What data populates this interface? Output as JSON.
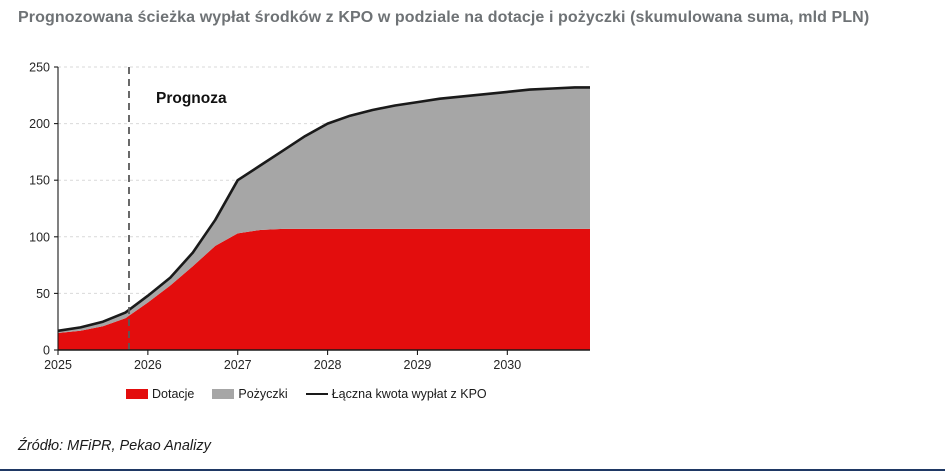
{
  "title": "Prognozowana ścieżka wypłat środków z KPO w podziale na dotacje i pożyczki (skumulowana suma, mld PLN)",
  "source": "Źródło: MFiPR, Pekao Analizy",
  "colors": {
    "dotacje": "#e30d0d",
    "pozyczki": "#a6a6a6",
    "total_line": "#1a1a1a",
    "title_text": "#6e7275",
    "axis": "#1a1a1a",
    "gridline": "#d9d9d9",
    "forecast_line": "#595959",
    "bottom_rule": "#1f3864"
  },
  "chart_data": {
    "type": "area",
    "stacked": true,
    "title": "Prognozowana ścieżka wypłat środków z KPO w podziale na dotacje i pożyczki (skumulowana suma, mld PLN)",
    "xlabel": "",
    "ylabel": "",
    "xlim": [
      2025,
      2030.92
    ],
    "ylim": [
      0,
      250
    ],
    "y_ticks": [
      0,
      50,
      100,
      150,
      200,
      250
    ],
    "x_ticks": [
      2025,
      2026,
      2027,
      2028,
      2029,
      2030
    ],
    "grid": "dashed-horizontal",
    "legend_position": "bottom",
    "annotation": {
      "label": "Prognoza",
      "x": 2025.79
    },
    "x": [
      2025,
      2025.25,
      2025.5,
      2025.75,
      2026,
      2026.25,
      2026.5,
      2026.75,
      2027,
      2027.25,
      2027.5,
      2027.75,
      2028,
      2028.25,
      2028.5,
      2028.75,
      2029,
      2029.25,
      2029.5,
      2029.75,
      2030,
      2030.25,
      2030.5,
      2030.75,
      2030.92
    ],
    "series": [
      {
        "name": "Dotacje",
        "role": "stacked-area",
        "color": "#e30d0d",
        "values": [
          15,
          17,
          21,
          28,
          42,
          57,
          74,
          92,
          103,
          106,
          107,
          107,
          107,
          107,
          107,
          107,
          107,
          107,
          107,
          107,
          107,
          107,
          107,
          107,
          107
        ]
      },
      {
        "name": "Pożyczki",
        "role": "stacked-area",
        "color": "#a6a6a6",
        "values": [
          2,
          3,
          4,
          5,
          6,
          7,
          12,
          23,
          47,
          57,
          69,
          82,
          93,
          100,
          105,
          109,
          112,
          115,
          117,
          119,
          121,
          123,
          124,
          125,
          125
        ]
      },
      {
        "name": "Łączna kwota wypłat z KPO",
        "role": "line-total",
        "color": "#1a1a1a",
        "values": [
          17,
          20,
          25,
          33,
          48,
          64,
          86,
          115,
          150,
          163,
          176,
          189,
          200,
          207,
          212,
          216,
          219,
          222,
          224,
          226,
          228,
          230,
          231,
          232,
          232
        ]
      }
    ]
  }
}
